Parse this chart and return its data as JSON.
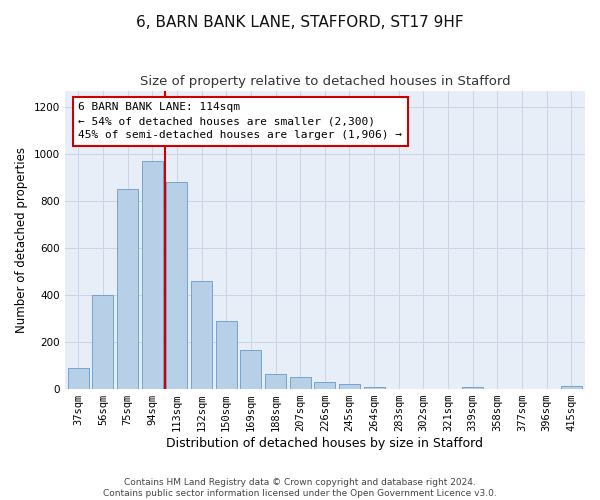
{
  "title": "6, BARN BANK LANE, STAFFORD, ST17 9HF",
  "subtitle": "Size of property relative to detached houses in Stafford",
  "xlabel": "Distribution of detached houses by size in Stafford",
  "ylabel": "Number of detached properties",
  "categories": [
    "37sqm",
    "56sqm",
    "75sqm",
    "94sqm",
    "113sqm",
    "132sqm",
    "150sqm",
    "169sqm",
    "188sqm",
    "207sqm",
    "226sqm",
    "245sqm",
    "264sqm",
    "283sqm",
    "302sqm",
    "321sqm",
    "339sqm",
    "358sqm",
    "377sqm",
    "396sqm",
    "415sqm"
  ],
  "values": [
    90,
    400,
    850,
    970,
    880,
    460,
    290,
    165,
    65,
    50,
    30,
    20,
    10,
    0,
    0,
    0,
    10,
    0,
    0,
    0,
    15
  ],
  "bar_color": "#b8cfe8",
  "bar_edge_color": "#6699cc",
  "vline_x": 3.5,
  "vline_color": "#cc0000",
  "annotation_text": "6 BARN BANK LANE: 114sqm\n← 54% of detached houses are smaller (2,300)\n45% of semi-detached houses are larger (1,906) →",
  "annotation_box_facecolor": "#ffffff",
  "annotation_box_edgecolor": "#cc0000",
  "ylim": [
    0,
    1270
  ],
  "yticks": [
    0,
    200,
    400,
    600,
    800,
    1000,
    1200
  ],
  "grid_color": "#c8d4e8",
  "bg_color": "#e8eef8",
  "footer_text": "Contains HM Land Registry data © Crown copyright and database right 2024.\nContains public sector information licensed under the Open Government Licence v3.0.",
  "title_fontsize": 11,
  "subtitle_fontsize": 9.5,
  "xlabel_fontsize": 9,
  "ylabel_fontsize": 8.5,
  "tick_fontsize": 7.5,
  "annotation_fontsize": 8,
  "footer_fontsize": 6.5
}
